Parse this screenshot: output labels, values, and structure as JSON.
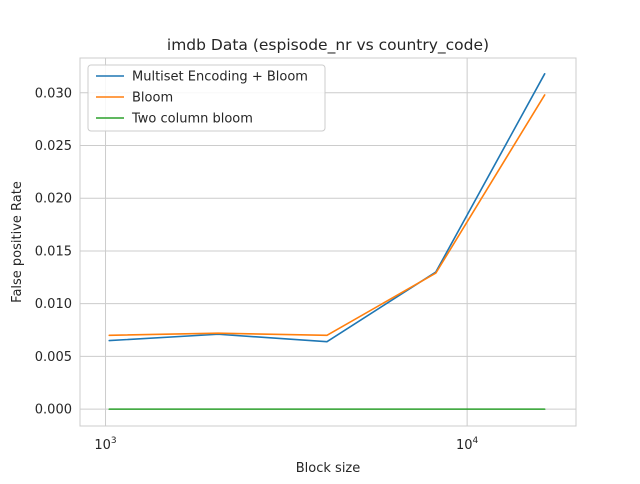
{
  "chart_data": {
    "type": "line",
    "title": "imdb Data (espisode_nr vs country_code)",
    "xlabel": "Block size",
    "ylabel": "False positive Rate",
    "xscale": "log",
    "xlim": [
      850,
      20000
    ],
    "ylim": [
      -0.0016,
      0.0333
    ],
    "x": [
      1024,
      2048,
      4096,
      8192,
      16384
    ],
    "x_ticks": [
      {
        "value": 1000,
        "base": "10",
        "exp": "3"
      },
      {
        "value": 10000,
        "base": "10",
        "exp": "4"
      }
    ],
    "y_ticks": [
      {
        "value": 0.0,
        "label": "0.000"
      },
      {
        "value": 0.005,
        "label": "0.005"
      },
      {
        "value": 0.01,
        "label": "0.010"
      },
      {
        "value": 0.015,
        "label": "0.015"
      },
      {
        "value": 0.02,
        "label": "0.020"
      },
      {
        "value": 0.025,
        "label": "0.025"
      },
      {
        "value": 0.03,
        "label": "0.030"
      }
    ],
    "grid": true,
    "legend_position": "top-left",
    "series": [
      {
        "name": "Multiset Encoding + Bloom",
        "color": "#1f77b4",
        "values": [
          0.0065,
          0.0071,
          0.0064,
          0.013,
          0.0318
        ]
      },
      {
        "name": "Bloom",
        "color": "#ff7f0e",
        "values": [
          0.007,
          0.0072,
          0.007,
          0.0129,
          0.0298
        ]
      },
      {
        "name": "Two column bloom",
        "color": "#2ca02c",
        "values": [
          0.0,
          0.0,
          0.0,
          0.0,
          0.0
        ]
      }
    ]
  }
}
